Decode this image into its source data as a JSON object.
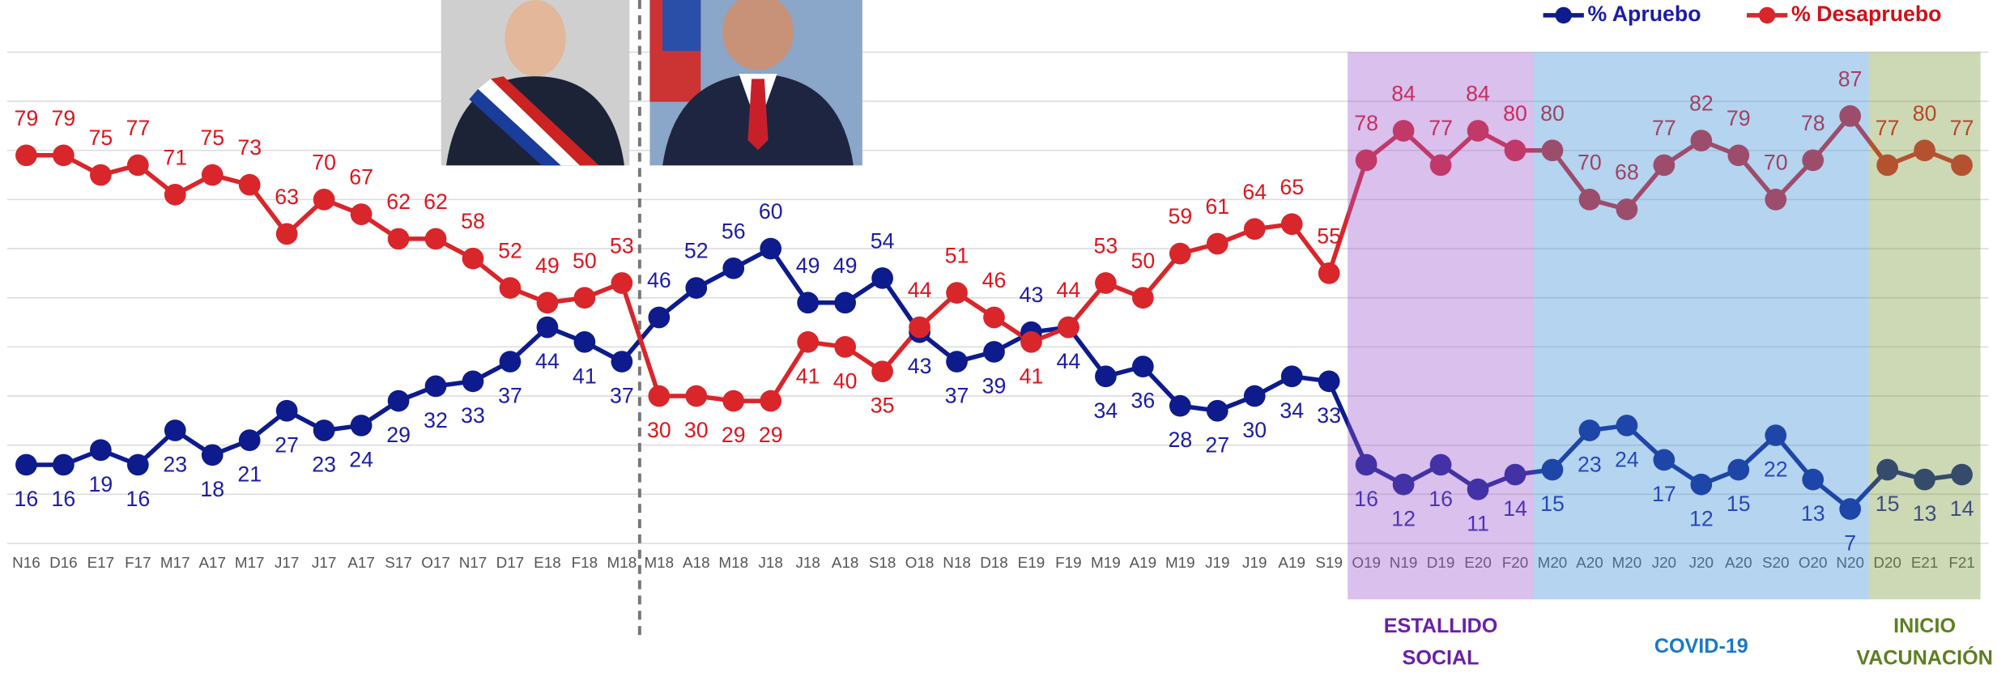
{
  "chart_data": {
    "type": "line",
    "categories": [
      "N16",
      "D16",
      "E17",
      "F17",
      "M17",
      "A17",
      "M17",
      "J17",
      "J17",
      "A17",
      "S17",
      "O17",
      "N17",
      "D17",
      "E18",
      "F18",
      "M18",
      "M18",
      "A18",
      "M18",
      "J18",
      "J18",
      "A18",
      "S18",
      "O18",
      "N18",
      "D18",
      "E19",
      "F19",
      "M19",
      "A19",
      "M19",
      "J19",
      "J19",
      "A19",
      "S19",
      "O19",
      "N19",
      "D19",
      "E20",
      "F20",
      "M20",
      "A20",
      "M20",
      "J20",
      "J20",
      "A20",
      "S20",
      "O20",
      "N20",
      "D20",
      "E21",
      "F21"
    ],
    "series": [
      {
        "name": "% Apruebo",
        "color": "#0d1b8c",
        "values": [
          16,
          16,
          19,
          16,
          23,
          18,
          21,
          27,
          23,
          24,
          29,
          32,
          33,
          37,
          44,
          41,
          37,
          46,
          52,
          56,
          60,
          49,
          49,
          54,
          43,
          37,
          39,
          43,
          44,
          34,
          36,
          28,
          27,
          30,
          34,
          33,
          16,
          12,
          16,
          11,
          14,
          15,
          23,
          24,
          17,
          12,
          15,
          22,
          13,
          7,
          15,
          13,
          14
        ]
      },
      {
        "name": "% Desapruebo",
        "color": "#d8262b",
        "values": [
          79,
          79,
          75,
          77,
          71,
          75,
          73,
          63,
          70,
          67,
          62,
          62,
          58,
          52,
          49,
          50,
          53,
          30,
          30,
          29,
          29,
          41,
          40,
          35,
          44,
          51,
          46,
          41,
          44,
          53,
          50,
          59,
          61,
          64,
          65,
          55,
          78,
          84,
          77,
          84,
          80,
          80,
          70,
          68,
          77,
          82,
          79,
          70,
          78,
          87,
          77,
          80,
          77
        ]
      }
    ],
    "ylim": [
      0,
      100
    ],
    "yticks": [
      0,
      10,
      20,
      30,
      40,
      50,
      60,
      70,
      80,
      90,
      100
    ],
    "grid": true,
    "legend": "top-right",
    "regions": [
      {
        "label": "ESTALLIDO SOCIAL",
        "color": "#9b59d0"
      },
      {
        "label": "COVID-19",
        "color": "#3a8fd8"
      },
      {
        "label": "INICIO VACUNACIÓN",
        "color": "#7a9a3a"
      }
    ]
  }
}
